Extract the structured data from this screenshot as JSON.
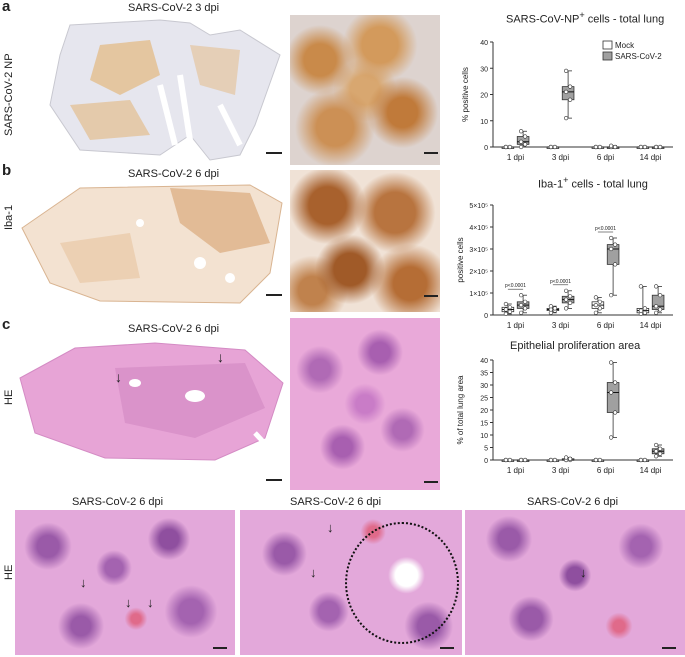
{
  "panels": {
    "a": {
      "letter": "a",
      "row_label": "SARS-CoV-2 NP",
      "caption": "SARS-CoV-2 3 dpi"
    },
    "b": {
      "letter": "b",
      "row_label": "Iba-1",
      "caption": "SARS-CoV-2 6 dpi"
    },
    "c": {
      "letter": "c",
      "row_label": "HE",
      "caption": "SARS-CoV-2 6 dpi"
    },
    "bottom": {
      "row_label": "HE",
      "captions": [
        "SARS-CoV-2 6 dpi",
        "SARS-CoV-2 6 dpi",
        "SARS-CoV-2 6 dpi"
      ]
    }
  },
  "colors": {
    "mock": "#ffffff",
    "sars": "#a0a0a0",
    "np_stain": "#c98a4a",
    "iba_stain": "#b8743f",
    "he_pink": "#e7a4d6",
    "he_purple": "#b06ab5"
  },
  "chart_data": [
    {
      "type": "box",
      "title_prefix": "SARS-CoV-NP",
      "title_sup": "+",
      "title_suffix": " cells - total lung",
      "ylabel": "% positive cells",
      "categories": [
        "1 dpi",
        "3 dpi",
        "6 dpi",
        "14 dpi"
      ],
      "yticks": [
        "0",
        "10",
        "20",
        "30",
        "40"
      ],
      "ylim": [
        0,
        40
      ],
      "legend": [
        "Mock",
        "SARS-CoV-2"
      ],
      "legend_position": "top-right",
      "series": [
        {
          "name": "Mock",
          "boxes": [
            [
              0,
              0,
              0,
              0,
              0
            ],
            [
              0,
              0,
              0,
              0,
              0
            ],
            [
              0,
              0,
              0,
              0,
              0
            ],
            [
              0,
              0,
              0,
              0,
              0
            ]
          ]
        },
        {
          "name": "SARS-CoV-2",
          "boxes": [
            [
              0,
              1,
              2,
              4,
              6
            ],
            [
              11,
              18,
              21,
              23,
              29
            ],
            [
              0,
              0,
              0,
              0,
              0.5
            ],
            [
              0,
              0,
              0,
              0,
              0
            ]
          ]
        }
      ]
    },
    {
      "type": "box",
      "title_prefix": "Iba-1",
      "title_sup": "+",
      "title_suffix": " cells - total lung",
      "ylabel": "positive cells",
      "categories": [
        "1 dpi",
        "3 dpi",
        "6 dpi",
        "14 dpi"
      ],
      "yticks": [
        "0",
        "1×10⁵",
        "2×10⁵",
        "3×10⁵",
        "4×10⁵",
        "5×10⁵"
      ],
      "ylim": [
        0,
        5
      ],
      "pvalues": [
        "p<0.0001",
        "p<0.0001",
        "p<0.0001"
      ],
      "series": [
        {
          "name": "Mock",
          "boxes": [
            [
              0.05,
              0.15,
              0.25,
              0.35,
              0.5
            ],
            [
              0.1,
              0.2,
              0.25,
              0.3,
              0.4
            ],
            [
              0.1,
              0.3,
              0.45,
              0.6,
              0.8
            ],
            [
              0.05,
              0.1,
              0.2,
              0.3,
              1.3
            ]
          ]
        },
        {
          "name": "SARS-CoV-2",
          "boxes": [
            [
              0.1,
              0.3,
              0.45,
              0.6,
              0.9
            ],
            [
              0.3,
              0.55,
              0.7,
              0.85,
              1.1
            ],
            [
              0.9,
              2.3,
              3.0,
              3.2,
              3.5
            ],
            [
              0.1,
              0.25,
              0.4,
              0.9,
              1.3
            ]
          ]
        }
      ]
    },
    {
      "type": "box",
      "title": "Epithelial proliferation area",
      "ylabel": "% of total lung area",
      "categories": [
        "1 dpi",
        "3 dpi",
        "6 dpi",
        "14 dpi"
      ],
      "yticks": [
        "0",
        "5",
        "10",
        "15",
        "20",
        "25",
        "30",
        "35",
        "40"
      ],
      "ylim": [
        0,
        40
      ],
      "series": [
        {
          "name": "Mock",
          "boxes": [
            [
              0,
              0,
              0,
              0,
              0
            ],
            [
              0,
              0,
              0,
              0,
              0
            ],
            [
              0,
              0,
              0,
              0,
              0
            ],
            [
              0,
              0,
              0,
              0,
              0
            ]
          ]
        },
        {
          "name": "SARS-CoV-2",
          "boxes": [
            [
              0,
              0,
              0,
              0,
              0
            ],
            [
              0,
              0,
              0,
              0.5,
              1
            ],
            [
              9,
              19,
              27,
              31,
              39
            ],
            [
              1.5,
              2.5,
              3.5,
              4.5,
              6
            ]
          ]
        }
      ]
    }
  ]
}
